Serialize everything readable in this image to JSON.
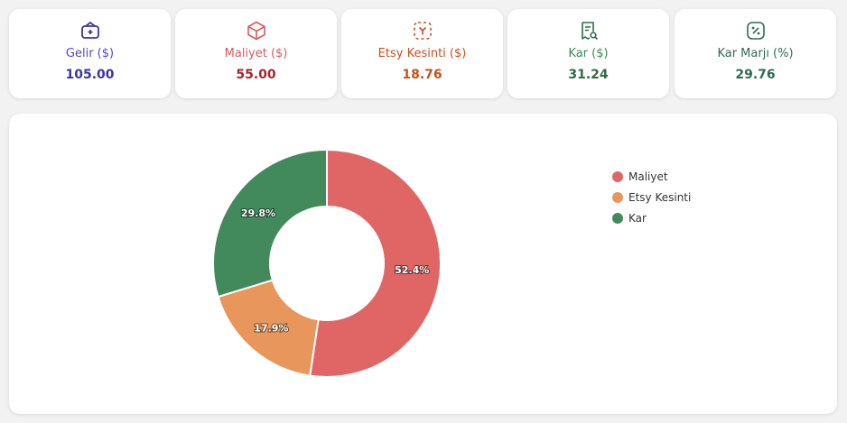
{
  "colors": {
    "gelir": "#3b34a8",
    "gelir_label": "#5247c9",
    "maliyet": "#a8242b",
    "maliyet_label": "#d95a5f",
    "etsy": "#c8501c",
    "etsy_label": "#c8501c",
    "kar": "#2f6b45",
    "kar_label": "#3b8a5a",
    "marj": "#2f6b55",
    "marj_label": "#2f6b55"
  },
  "cards": [
    {
      "label": "Gelir ($)",
      "value": "105.00",
      "icon": "wallet-icon"
    },
    {
      "label": "Maliyet ($)",
      "value": "55.00",
      "icon": "box-icon"
    },
    {
      "label": "Etsy Kesinti ($)",
      "value": "18.76",
      "icon": "deduction-icon"
    },
    {
      "label": "Kar ($)",
      "value": "31.24",
      "icon": "receipt-search-icon"
    },
    {
      "label": "Kar Marjı (%)",
      "value": "29.76",
      "icon": "percent-icon"
    }
  ],
  "chart_data": {
    "type": "pie",
    "donut": true,
    "legend_position": "right",
    "series": [
      {
        "name": "Maliyet",
        "value": 55.0,
        "percent_label": "52.4%",
        "color": "#e06666"
      },
      {
        "name": "Etsy Kesinti",
        "value": 18.76,
        "percent_label": "17.9%",
        "color": "#e8965c"
      },
      {
        "name": "Kar",
        "value": 31.24,
        "percent_label": "29.8%",
        "color": "#428a5c"
      }
    ]
  }
}
